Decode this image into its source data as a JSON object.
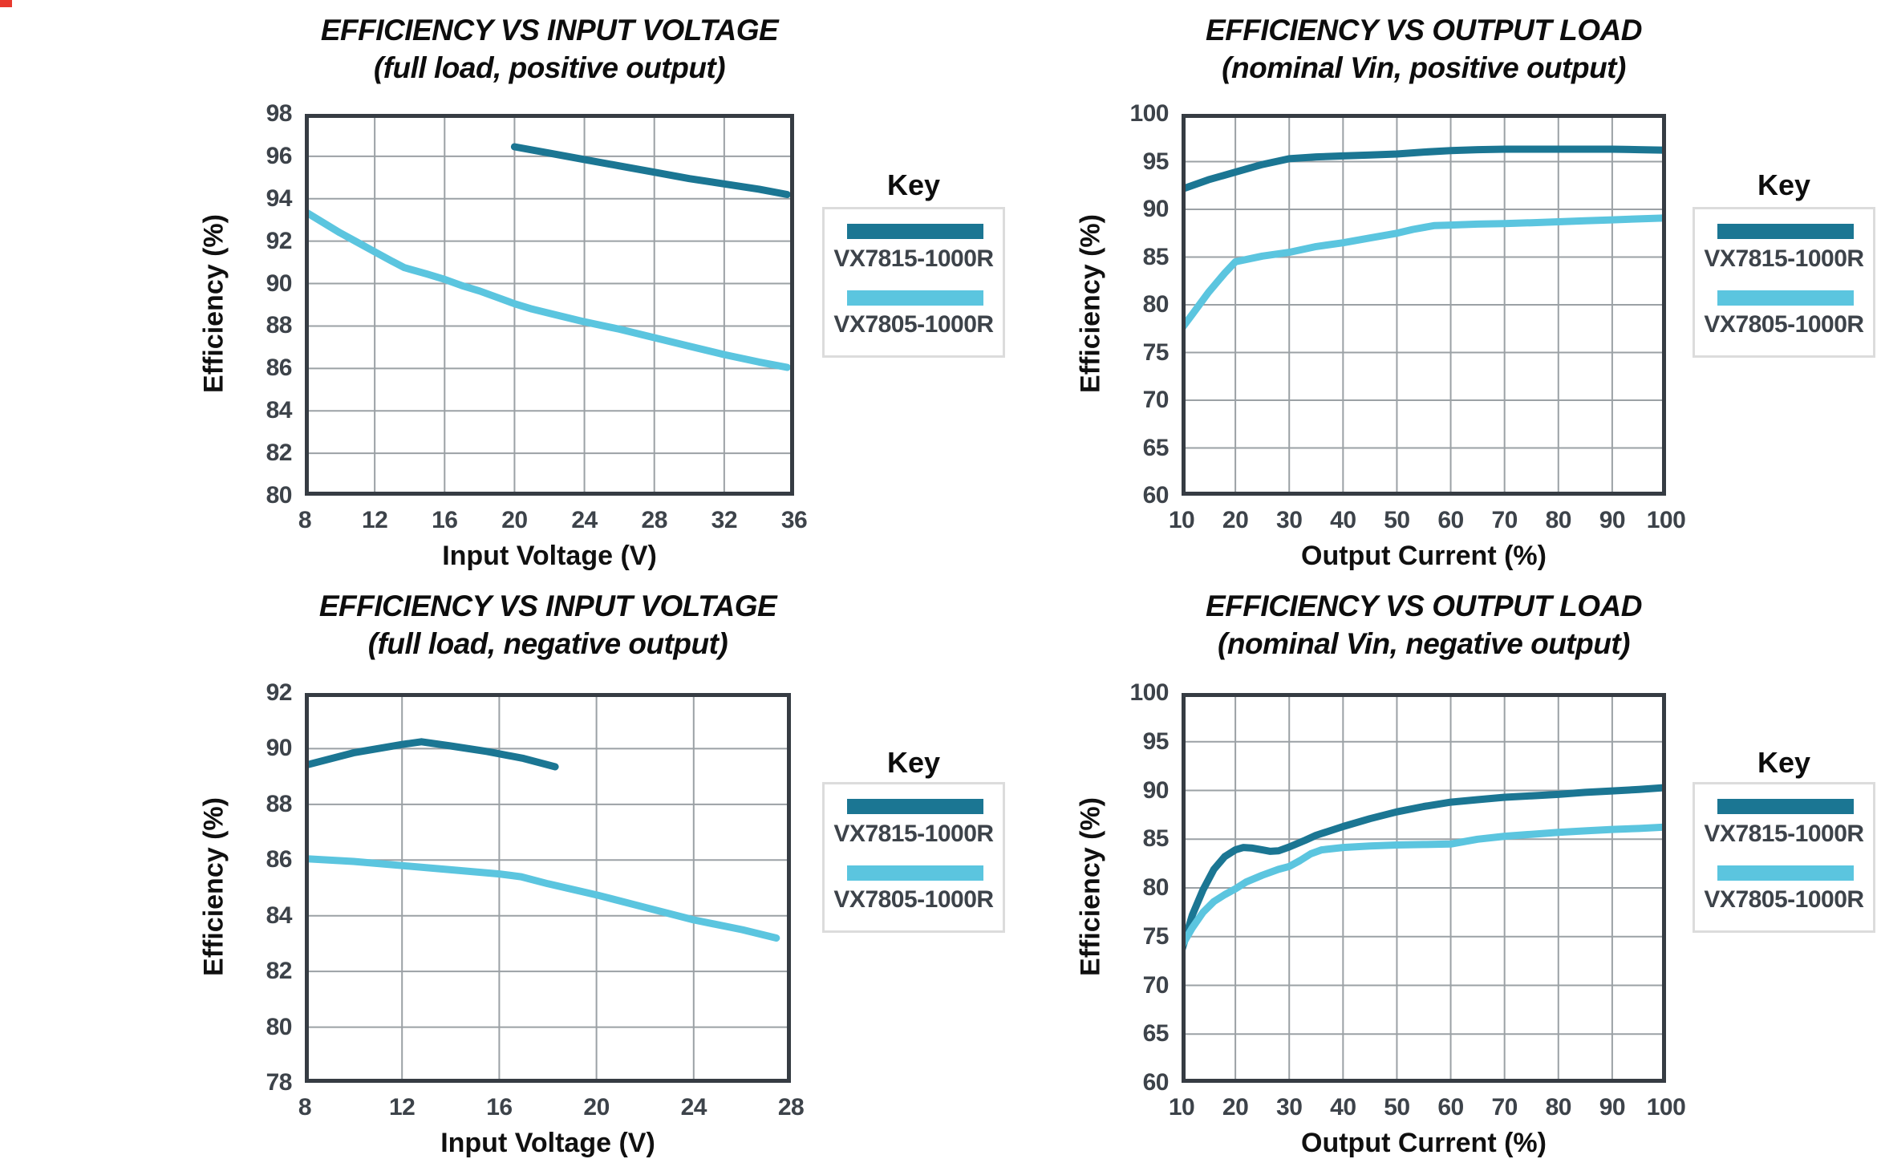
{
  "page": {
    "background": "#ffffff",
    "red_corner_mark_color": "#e8392e"
  },
  "legend": {
    "title": "Key",
    "items": [
      {
        "label": "VX7815-1000R",
        "color": "#1B7693"
      },
      {
        "label": "VX7805-1000R",
        "color": "#5BC5DF"
      }
    ]
  },
  "colors": {
    "gridline": "#9ba1a5",
    "plot_border": "#363c43",
    "tick_text": "#3d434a",
    "title_text": "#0d0d0d"
  },
  "chart_data": [
    {
      "type": "line",
      "title_line1": "EFFICIENCY VS INPUT VOLTAGE",
      "title_line2": "(full load, positive output)",
      "xlabel": "Input Voltage (V)",
      "ylabel": "Efficiency (%)",
      "xlim": [
        8,
        36
      ],
      "ylim": [
        80,
        98
      ],
      "xticks": [
        8,
        12,
        16,
        20,
        24,
        28,
        32,
        36
      ],
      "yticks": [
        80,
        82,
        84,
        86,
        88,
        90,
        92,
        94,
        96,
        98
      ],
      "grid": true,
      "legend_position": "right",
      "series": [
        {
          "name": "VX7815-1000R",
          "color": "#1B7693",
          "points": [
            [
              20,
              96.45
            ],
            [
              22,
              96.15
            ],
            [
              24,
              95.85
            ],
            [
              26,
              95.55
            ],
            [
              28,
              95.25
            ],
            [
              30,
              94.95
            ],
            [
              32,
              94.7
            ],
            [
              34,
              94.45
            ],
            [
              35.6,
              94.2
            ]
          ]
        },
        {
          "name": "VX7805-1000R",
          "color": "#5BC5DF",
          "points": [
            [
              8,
              93.4
            ],
            [
              9,
              92.9
            ],
            [
              10,
              92.4
            ],
            [
              11,
              91.95
            ],
            [
              12,
              91.5
            ],
            [
              13,
              91.05
            ],
            [
              13.7,
              90.75
            ],
            [
              15,
              90.45
            ],
            [
              16,
              90.2
            ],
            [
              17,
              89.9
            ],
            [
              18,
              89.65
            ],
            [
              19,
              89.35
            ],
            [
              20,
              89.05
            ],
            [
              21,
              88.8
            ],
            [
              22,
              88.6
            ],
            [
              24,
              88.2
            ],
            [
              26,
              87.85
            ],
            [
              28,
              87.45
            ],
            [
              30,
              87.05
            ],
            [
              32,
              86.65
            ],
            [
              34,
              86.3
            ],
            [
              35.6,
              86.05
            ]
          ]
        }
      ]
    },
    {
      "type": "line",
      "title_line1": "EFFICIENCY VS OUTPUT LOAD",
      "title_line2": "(nominal Vin, positive output)",
      "xlabel": "Output Current (%)",
      "ylabel": "Efficiency (%)",
      "xlim": [
        10,
        100
      ],
      "ylim": [
        60,
        100
      ],
      "xticks": [
        10,
        20,
        30,
        40,
        50,
        60,
        70,
        80,
        90,
        100
      ],
      "yticks": [
        60,
        65,
        70,
        75,
        80,
        85,
        90,
        95,
        100
      ],
      "grid": true,
      "legend_position": "right",
      "series": [
        {
          "name": "VX7815-1000R",
          "color": "#1B7693",
          "points": [
            [
              10,
              92.1
            ],
            [
              15,
              93.1
            ],
            [
              20,
              93.9
            ],
            [
              25,
              94.7
            ],
            [
              30,
              95.3
            ],
            [
              35,
              95.5
            ],
            [
              40,
              95.6
            ],
            [
              45,
              95.7
            ],
            [
              50,
              95.8
            ],
            [
              55,
              96.0
            ],
            [
              60,
              96.15
            ],
            [
              65,
              96.25
            ],
            [
              70,
              96.3
            ],
            [
              80,
              96.3
            ],
            [
              90,
              96.3
            ],
            [
              95,
              96.25
            ],
            [
              100,
              96.2
            ]
          ]
        },
        {
          "name": "VX7805-1000R",
          "color": "#5BC5DF",
          "points": [
            [
              10,
              77.5
            ],
            [
              12,
              79.0
            ],
            [
              15,
              81.3
            ],
            [
              18,
              83.3
            ],
            [
              20,
              84.5
            ],
            [
              25,
              85.1
            ],
            [
              30,
              85.5
            ],
            [
              35,
              86.1
            ],
            [
              40,
              86.5
            ],
            [
              45,
              87.0
            ],
            [
              50,
              87.5
            ],
            [
              53,
              87.9
            ],
            [
              57,
              88.3
            ],
            [
              60,
              88.35
            ],
            [
              65,
              88.45
            ],
            [
              70,
              88.5
            ],
            [
              75,
              88.6
            ],
            [
              80,
              88.7
            ],
            [
              85,
              88.8
            ],
            [
              90,
              88.9
            ],
            [
              95,
              89.0
            ],
            [
              100,
              89.1
            ]
          ]
        }
      ]
    },
    {
      "type": "line",
      "title_line1": "EFFICIENCY VS INPUT VOLTAGE",
      "title_line2": "(full load, negative output)",
      "xlabel": "Input Voltage (V)",
      "ylabel": "Efficiency (%)",
      "xlim": [
        8,
        28
      ],
      "ylim": [
        78,
        92
      ],
      "xticks": [
        8,
        12,
        16,
        20,
        24,
        28
      ],
      "yticks": [
        78,
        80,
        82,
        84,
        86,
        88,
        90,
        92
      ],
      "grid": true,
      "legend_position": "right",
      "series": [
        {
          "name": "VX7815-1000R",
          "color": "#1B7693",
          "points": [
            [
              8,
              89.4
            ],
            [
              10,
              89.85
            ],
            [
              12,
              90.15
            ],
            [
              12.8,
              90.25
            ],
            [
              14,
              90.1
            ],
            [
              15.5,
              89.9
            ],
            [
              17,
              89.65
            ],
            [
              18.3,
              89.35
            ]
          ]
        },
        {
          "name": "VX7805-1000R",
          "color": "#5BC5DF",
          "points": [
            [
              8,
              86.05
            ],
            [
              10,
              85.95
            ],
            [
              12,
              85.8
            ],
            [
              14,
              85.65
            ],
            [
              16,
              85.5
            ],
            [
              16.9,
              85.4
            ],
            [
              18,
              85.15
            ],
            [
              20,
              84.75
            ],
            [
              22,
              84.3
            ],
            [
              24,
              83.85
            ],
            [
              26,
              83.5
            ],
            [
              27.4,
              83.2
            ]
          ]
        }
      ]
    },
    {
      "type": "line",
      "title_line1": "EFFICIENCY VS OUTPUT LOAD",
      "title_line2": "(nominal Vin, negative output)",
      "xlabel": "Output Current (%)",
      "ylabel": "Efficiency (%)",
      "xlim": [
        10,
        100
      ],
      "ylim": [
        60,
        100
      ],
      "xticks": [
        10,
        20,
        30,
        40,
        50,
        60,
        70,
        80,
        90,
        100
      ],
      "yticks": [
        60,
        65,
        70,
        75,
        80,
        85,
        90,
        95,
        100
      ],
      "grid": true,
      "legend_position": "right",
      "series": [
        {
          "name": "VX7815-1000R",
          "color": "#1B7693",
          "points": [
            [
              10,
              73.5
            ],
            [
              12,
              77.2
            ],
            [
              14,
              79.8
            ],
            [
              16,
              81.9
            ],
            [
              18,
              83.2
            ],
            [
              20,
              83.9
            ],
            [
              21.5,
              84.15
            ],
            [
              23,
              84.1
            ],
            [
              25,
              83.9
            ],
            [
              26.5,
              83.75
            ],
            [
              28,
              83.8
            ],
            [
              30,
              84.2
            ],
            [
              33,
              84.9
            ],
            [
              35,
              85.4
            ],
            [
              40,
              86.3
            ],
            [
              45,
              87.1
            ],
            [
              50,
              87.8
            ],
            [
              55,
              88.35
            ],
            [
              60,
              88.8
            ],
            [
              65,
              89.05
            ],
            [
              70,
              89.3
            ],
            [
              75,
              89.45
            ],
            [
              80,
              89.6
            ],
            [
              85,
              89.8
            ],
            [
              90,
              89.95
            ],
            [
              95,
              90.1
            ],
            [
              100,
              90.3
            ]
          ]
        },
        {
          "name": "VX7805-1000R",
          "color": "#5BC5DF",
          "points": [
            [
              10,
              74.0
            ],
            [
              12,
              75.9
            ],
            [
              14,
              77.5
            ],
            [
              16,
              78.6
            ],
            [
              18,
              79.3
            ],
            [
              20,
              79.9
            ],
            [
              22,
              80.6
            ],
            [
              25,
              81.3
            ],
            [
              28,
              81.9
            ],
            [
              30,
              82.2
            ],
            [
              32,
              82.8
            ],
            [
              34,
              83.5
            ],
            [
              36,
              83.9
            ],
            [
              40,
              84.15
            ],
            [
              45,
              84.3
            ],
            [
              50,
              84.4
            ],
            [
              55,
              84.45
            ],
            [
              60,
              84.5
            ],
            [
              63,
              84.8
            ],
            [
              65,
              85.0
            ],
            [
              70,
              85.3
            ],
            [
              75,
              85.5
            ],
            [
              80,
              85.7
            ],
            [
              85,
              85.85
            ],
            [
              90,
              86.0
            ],
            [
              95,
              86.1
            ],
            [
              100,
              86.25
            ]
          ]
        }
      ]
    }
  ]
}
